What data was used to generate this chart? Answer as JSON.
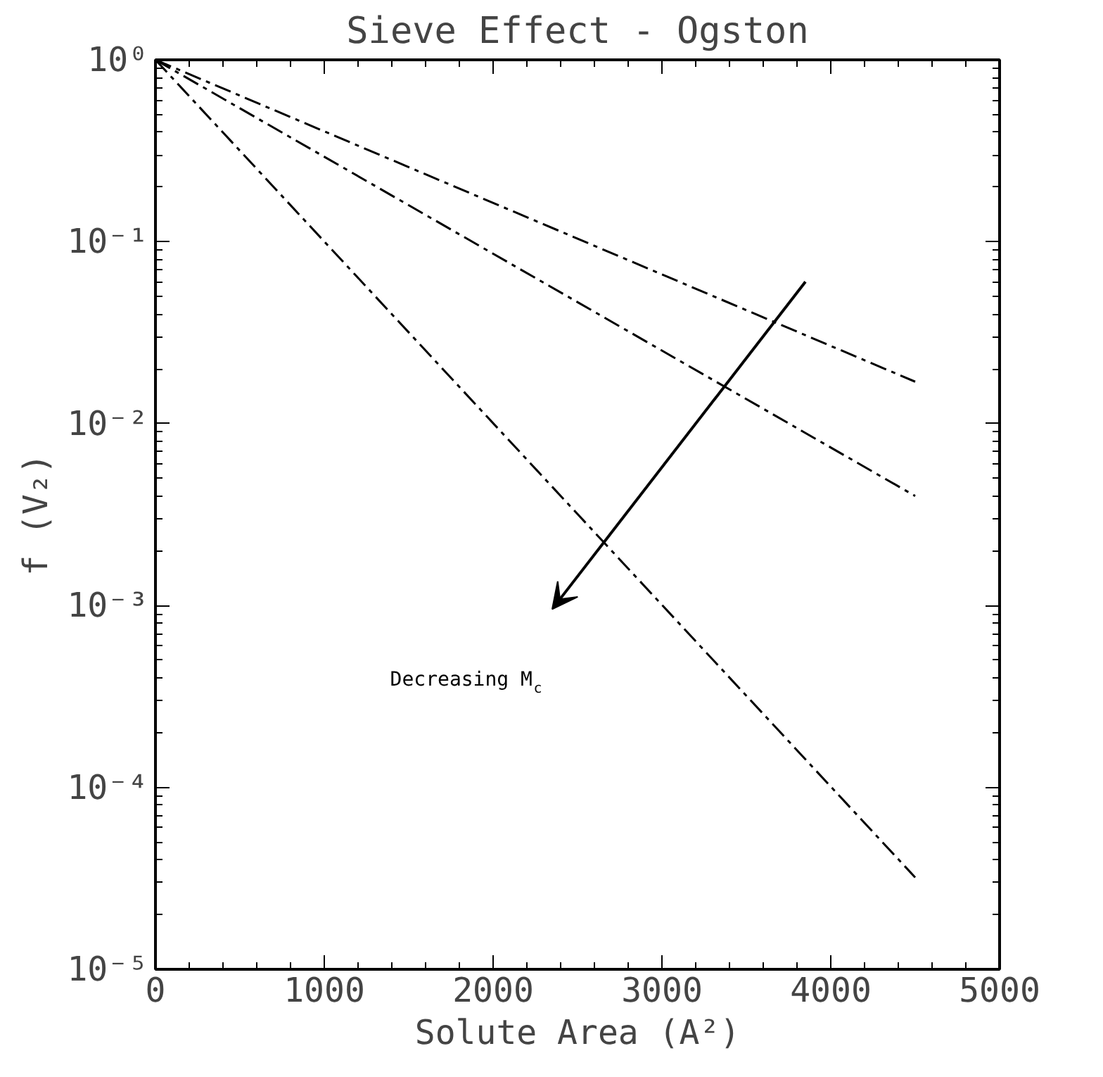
{
  "chart_data": {
    "type": "line",
    "title": "Sieve Effect - Ogston",
    "xlabel": "Solute Area (A²)",
    "ylabel": "f (V₂)",
    "x": [
      0,
      4500
    ],
    "series": [
      {
        "color": "#000000",
        "values": [
          1,
          0.017
        ]
      },
      {
        "color": "#000000",
        "values": [
          1,
          0.004
        ]
      },
      {
        "color": "#000000",
        "values": [
          1,
          3.2e-05
        ]
      }
    ],
    "log": "y",
    "xlim": [
      0,
      5000
    ],
    "ylim": [
      1e-05,
      1
    ],
    "xticks": [
      0,
      1000,
      2000,
      3000,
      4000,
      5000
    ],
    "yticks": [
      {
        "value": 1,
        "label": "10⁰"
      },
      {
        "value": 0.1,
        "label": "10⁻¹"
      },
      {
        "value": 0.01,
        "label": "10⁻²"
      },
      {
        "value": 0.001,
        "label": "10⁻³"
      },
      {
        "value": 0.0001,
        "label": "10⁻⁴"
      },
      {
        "value": 1e-05,
        "label": "10⁻⁵"
      }
    ],
    "annotations": [
      "Decreasing M$_{c}$"
    ],
    "grid": false,
    "marker": "none",
    "line_style": "dashed"
  }
}
